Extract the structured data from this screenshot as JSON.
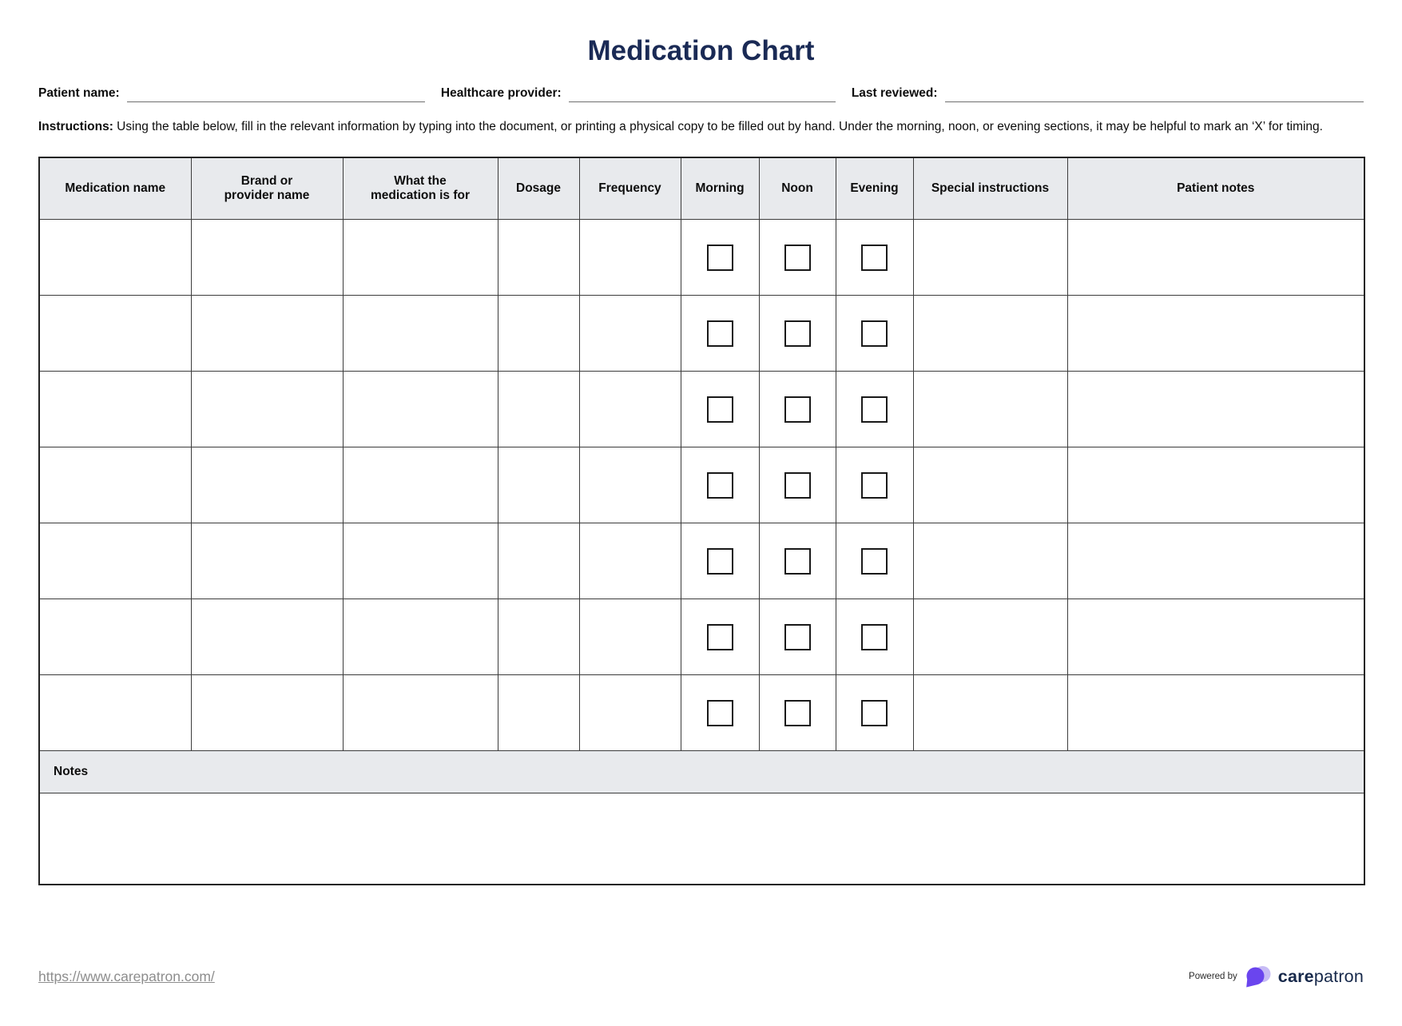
{
  "title": "Medication Chart",
  "fields": [
    {
      "label": "Patient name:",
      "value": ""
    },
    {
      "label": "Healthcare provider:",
      "value": ""
    },
    {
      "label": "Last reviewed:",
      "value": ""
    }
  ],
  "instructions": {
    "label": "Instructions:",
    "text": " Using the table below, fill in the relevant information by typing into the document, or printing a physical copy to be filled out by hand. Under the morning, noon, or evening sections, it may be helpful to mark an ‘X’ for timing."
  },
  "table": {
    "columns": [
      {
        "key": "medication",
        "label": "Medication name",
        "checkbox": false
      },
      {
        "key": "brand",
        "label": "Brand or\nprovider name",
        "checkbox": false
      },
      {
        "key": "purpose",
        "label": "What the\nmedication is for",
        "checkbox": false
      },
      {
        "key": "dosage",
        "label": "Dosage",
        "checkbox": false
      },
      {
        "key": "frequency",
        "label": "Frequency",
        "checkbox": false
      },
      {
        "key": "morning",
        "label": "Morning",
        "checkbox": true
      },
      {
        "key": "noon",
        "label": "Noon",
        "checkbox": true
      },
      {
        "key": "evening",
        "label": "Evening",
        "checkbox": true
      },
      {
        "key": "special",
        "label": "Special instructions",
        "checkbox": false
      },
      {
        "key": "patientnotes",
        "label": "Patient notes",
        "checkbox": false
      }
    ],
    "row_count": 7,
    "cells_empty": true,
    "checkboxes_checked": false,
    "notes_label": "Notes",
    "notes_value": ""
  },
  "footer": {
    "link": "https://www.carepatron.com/",
    "powered_by": "Powered by",
    "brand_bold": "care",
    "brand_regular": "patron"
  },
  "colors": {
    "title_navy": "#1a2a55",
    "header_bg": "#e8eaed",
    "border_dark": "#3c3c3c",
    "logo_purple": "#6a45ee",
    "logo_lavender": "#c7bbf5",
    "brand_navy": "#16284a",
    "link_gray": "#8d8d8d"
  }
}
